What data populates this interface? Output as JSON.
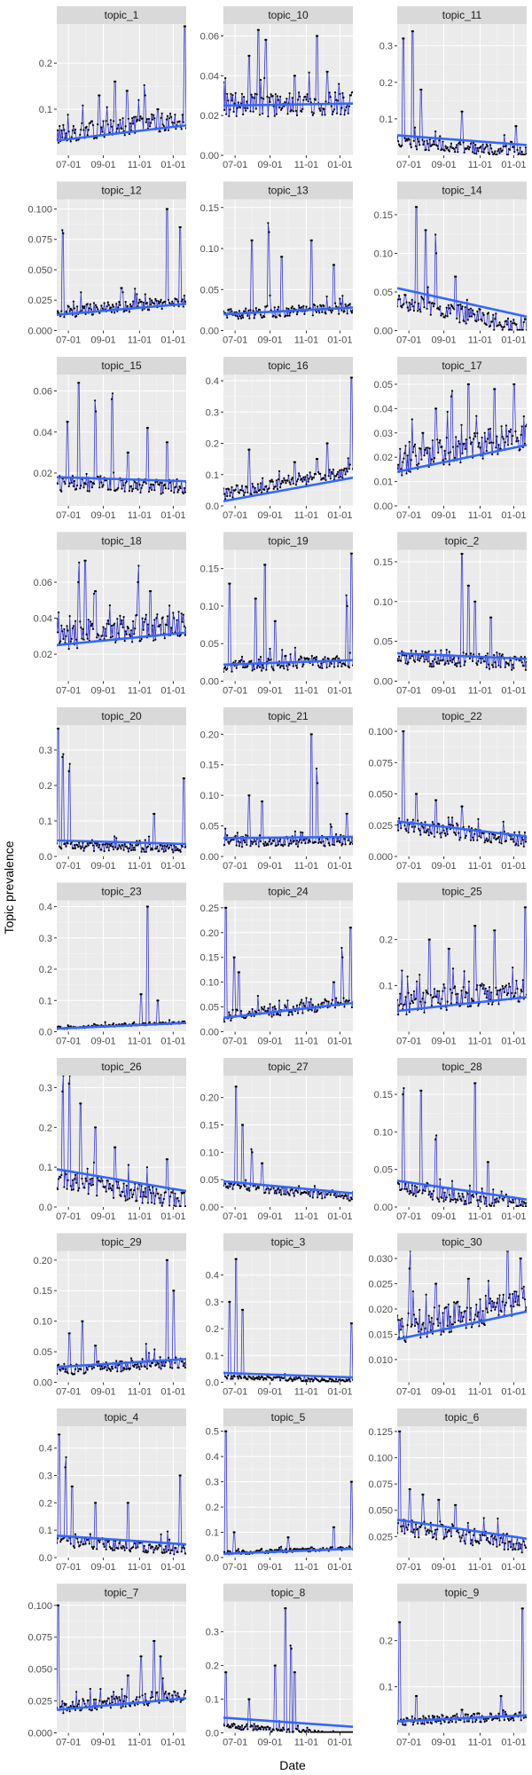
{
  "figure": {
    "xlabel": "Date",
    "ylabel": "Topic prevalence",
    "x_tick_labels": [
      "07-01",
      "09-01",
      "11-01",
      "01-01"
    ],
    "colors": {
      "panel_bg": "#ebebeb",
      "grid": "#ffffff",
      "strip_bg": "#d9d9d9",
      "line": "#3333cc",
      "point": "#000000",
      "trend": "#3366ff"
    }
  },
  "chart_data": [
    {
      "title": "topic_1",
      "type": "line",
      "y_ticks": [
        "0.1",
        "0.2"
      ],
      "ylim": [
        0,
        0.285
      ],
      "trend": [
        0.032,
        0.065
      ],
      "base": 0.045,
      "noise": 0.02,
      "spikes": [
        [
          0.33,
          0.13
        ],
        [
          0.45,
          0.16
        ],
        [
          0.54,
          0.14
        ],
        [
          0.68,
          0.13
        ],
        [
          0.78,
          0.1
        ],
        [
          0.99,
          0.28
        ]
      ]
    },
    {
      "title": "topic_10",
      "type": "line",
      "y_ticks": [
        "0.00",
        "0.02",
        "0.04",
        "0.06"
      ],
      "ylim": [
        0,
        0.066
      ],
      "trend": [
        0.025,
        0.026
      ],
      "base": 0.025,
      "noise": 0.006,
      "spikes": [
        [
          0.2,
          0.05
        ],
        [
          0.27,
          0.063
        ],
        [
          0.33,
          0.058
        ],
        [
          0.55,
          0.04
        ],
        [
          0.72,
          0.06
        ],
        [
          0.8,
          0.042
        ]
      ]
    },
    {
      "title": "topic_11",
      "type": "line",
      "y_ticks": [
        "0.1",
        "0.2",
        "0.3"
      ],
      "ylim": [
        0,
        0.36
      ],
      "trend": [
        0.055,
        0.028
      ],
      "base": 0.035,
      "noise": 0.015,
      "spikes": [
        [
          0.05,
          0.32
        ],
        [
          0.12,
          0.34
        ],
        [
          0.18,
          0.18
        ],
        [
          0.5,
          0.12
        ],
        [
          0.92,
          0.08
        ]
      ]
    },
    {
      "title": "topic_12",
      "type": "line",
      "y_ticks": [
        "0.000",
        "0.025",
        "0.050",
        "0.075",
        "0.100"
      ],
      "ylim": [
        0,
        0.108
      ],
      "trend": [
        0.013,
        0.022
      ],
      "base": 0.015,
      "noise": 0.005,
      "spikes": [
        [
          0.05,
          0.08
        ],
        [
          0.5,
          0.035
        ],
        [
          0.85,
          0.1
        ],
        [
          0.95,
          0.085
        ]
      ]
    },
    {
      "title": "topic_13",
      "type": "line",
      "y_ticks": [
        "0.00",
        "0.05",
        "0.10",
        "0.15"
      ],
      "ylim": [
        0,
        0.16
      ],
      "trend": [
        0.02,
        0.028
      ],
      "base": 0.02,
      "noise": 0.007,
      "spikes": [
        [
          0.22,
          0.11
        ],
        [
          0.35,
          0.12
        ],
        [
          0.45,
          0.09
        ],
        [
          0.68,
          0.11
        ],
        [
          0.85,
          0.08
        ]
      ]
    },
    {
      "title": "topic_14",
      "type": "line",
      "y_ticks": [
        "0.00",
        "0.05",
        "0.10",
        "0.15"
      ],
      "ylim": [
        0,
        0.17
      ],
      "trend": [
        0.055,
        0.018
      ],
      "base": 0.04,
      "noise": 0.012,
      "spikes": [
        [
          0.15,
          0.16
        ],
        [
          0.22,
          0.13
        ],
        [
          0.3,
          0.1
        ],
        [
          0.45,
          0.07
        ]
      ]
    },
    {
      "title": "topic_15",
      "type": "line",
      "y_ticks": [
        "0.02",
        "0.04",
        "0.06"
      ],
      "ylim": [
        0.004,
        0.068
      ],
      "trend": [
        0.018,
        0.016
      ],
      "base": 0.015,
      "noise": 0.004,
      "spikes": [
        [
          0.08,
          0.045
        ],
        [
          0.17,
          0.064
        ],
        [
          0.3,
          0.05
        ],
        [
          0.43,
          0.056
        ],
        [
          0.55,
          0.03
        ],
        [
          0.7,
          0.042
        ],
        [
          0.85,
          0.035
        ]
      ]
    },
    {
      "title": "topic_16",
      "type": "line",
      "y_ticks": [
        "0.0",
        "0.1",
        "0.2",
        "0.3",
        "0.4"
      ],
      "ylim": [
        0,
        0.42
      ],
      "trend": [
        0.015,
        0.09
      ],
      "base": 0.04,
      "noise": 0.02,
      "spikes": [
        [
          0.2,
          0.18
        ],
        [
          0.55,
          0.14
        ],
        [
          0.72,
          0.15
        ],
        [
          0.8,
          0.2
        ],
        [
          0.99,
          0.41
        ]
      ]
    },
    {
      "title": "topic_17",
      "type": "line",
      "y_ticks": [
        "0.00",
        "0.01",
        "0.02",
        "0.03",
        "0.04",
        "0.05"
      ],
      "ylim": [
        0,
        0.054
      ],
      "trend": [
        0.014,
        0.025
      ],
      "base": 0.018,
      "noise": 0.006,
      "spikes": [
        [
          0.2,
          0.03
        ],
        [
          0.3,
          0.04
        ],
        [
          0.42,
          0.045
        ],
        [
          0.55,
          0.05
        ],
        [
          0.75,
          0.048
        ],
        [
          0.9,
          0.05
        ]
      ]
    },
    {
      "title": "topic_18",
      "type": "line",
      "y_ticks": [
        "0.02",
        "0.04",
        "0.06"
      ],
      "ylim": [
        0.005,
        0.078
      ],
      "trend": [
        0.025,
        0.032
      ],
      "base": 0.03,
      "noise": 0.008,
      "spikes": [
        [
          0.17,
          0.06
        ],
        [
          0.22,
          0.072
        ],
        [
          0.3,
          0.055
        ],
        [
          0.63,
          0.06
        ],
        [
          0.72,
          0.055
        ]
      ]
    },
    {
      "title": "topic_19",
      "type": "line",
      "y_ticks": [
        "0.00",
        "0.05",
        "0.10",
        "0.15"
      ],
      "ylim": [
        0,
        0.175
      ],
      "trend": [
        0.022,
        0.028
      ],
      "base": 0.02,
      "noise": 0.008,
      "spikes": [
        [
          0.05,
          0.13
        ],
        [
          0.25,
          0.11
        ],
        [
          0.32,
          0.155
        ],
        [
          0.4,
          0.08
        ],
        [
          0.95,
          0.1
        ],
        [
          0.99,
          0.17
        ]
      ]
    },
    {
      "title": "topic_2",
      "type": "line",
      "y_ticks": [
        "0.00",
        "0.05",
        "0.10",
        "0.15"
      ],
      "ylim": [
        0,
        0.165
      ],
      "trend": [
        0.035,
        0.028
      ],
      "base": 0.03,
      "noise": 0.01,
      "spikes": [
        [
          0.5,
          0.16
        ],
        [
          0.55,
          0.12
        ],
        [
          0.6,
          0.1
        ],
        [
          0.72,
          0.08
        ]
      ]
    },
    {
      "title": "topic_20",
      "type": "line",
      "y_ticks": [
        "0.0",
        "0.1",
        "0.2",
        "0.3"
      ],
      "ylim": [
        0,
        0.37
      ],
      "trend": [
        0.045,
        0.035
      ],
      "base": 0.03,
      "noise": 0.012,
      "spikes": [
        [
          0.01,
          0.36
        ],
        [
          0.05,
          0.28
        ],
        [
          0.1,
          0.24
        ],
        [
          0.75,
          0.12
        ],
        [
          0.98,
          0.22
        ]
      ]
    },
    {
      "title": "topic_21",
      "type": "line",
      "y_ticks": [
        "0.00",
        "0.05",
        "0.10",
        "0.15",
        "0.20"
      ],
      "ylim": [
        0,
        0.215
      ],
      "trend": [
        0.03,
        0.032
      ],
      "base": 0.025,
      "noise": 0.01,
      "spikes": [
        [
          0.2,
          0.1
        ],
        [
          0.3,
          0.09
        ],
        [
          0.68,
          0.2
        ],
        [
          0.72,
          0.12
        ],
        [
          0.95,
          0.07
        ]
      ]
    },
    {
      "title": "topic_22",
      "type": "line",
      "y_ticks": [
        "0.000",
        "0.025",
        "0.050",
        "0.075",
        "0.100"
      ],
      "ylim": [
        0,
        0.105
      ],
      "trend": [
        0.028,
        0.016
      ],
      "base": 0.025,
      "noise": 0.006,
      "spikes": [
        [
          0.05,
          0.1
        ],
        [
          0.15,
          0.05
        ],
        [
          0.3,
          0.045
        ],
        [
          0.5,
          0.04
        ]
      ]
    },
    {
      "title": "topic_23",
      "type": "line",
      "y_ticks": [
        "0.0",
        "0.1",
        "0.2",
        "0.3",
        "0.4"
      ],
      "ylim": [
        0,
        0.42
      ],
      "trend": [
        0.01,
        0.028
      ],
      "base": 0.012,
      "noise": 0.004,
      "spikes": [
        [
          0.65,
          0.12
        ],
        [
          0.7,
          0.4
        ],
        [
          0.78,
          0.1
        ]
      ]
    },
    {
      "title": "topic_24",
      "type": "line",
      "y_ticks": [
        "0.00",
        "0.05",
        "0.10",
        "0.15",
        "0.20",
        "0.25"
      ],
      "ylim": [
        0,
        0.265
      ],
      "trend": [
        0.028,
        0.058
      ],
      "base": 0.03,
      "noise": 0.012,
      "spikes": [
        [
          0.02,
          0.25
        ],
        [
          0.08,
          0.15
        ],
        [
          0.12,
          0.12
        ],
        [
          0.85,
          0.1
        ],
        [
          0.92,
          0.15
        ],
        [
          0.98,
          0.21
        ]
      ]
    },
    {
      "title": "topic_25",
      "type": "line",
      "y_ticks": [
        "0.1",
        "0.2"
      ],
      "ylim": [
        0,
        0.285
      ],
      "trend": [
        0.045,
        0.075
      ],
      "base": 0.06,
      "noise": 0.025,
      "spikes": [
        [
          0.25,
          0.2
        ],
        [
          0.4,
          0.18
        ],
        [
          0.6,
          0.23
        ],
        [
          0.75,
          0.22
        ],
        [
          0.99,
          0.27
        ]
      ]
    },
    {
      "title": "topic_26",
      "type": "line",
      "y_ticks": [
        "0.0",
        "0.1",
        "0.2",
        "0.3"
      ],
      "ylim": [
        0,
        0.33
      ],
      "trend": [
        0.095,
        0.04
      ],
      "base": 0.07,
      "noise": 0.025,
      "spikes": [
        [
          0.05,
          0.29
        ],
        [
          0.1,
          0.31
        ],
        [
          0.18,
          0.26
        ],
        [
          0.3,
          0.2
        ],
        [
          0.45,
          0.15
        ],
        [
          0.85,
          0.12
        ]
      ]
    },
    {
      "title": "topic_27",
      "type": "line",
      "y_ticks": [
        "0.00",
        "0.05",
        "0.10",
        "0.15",
        "0.20"
      ],
      "ylim": [
        0,
        0.24
      ],
      "trend": [
        0.047,
        0.025
      ],
      "base": 0.04,
      "noise": 0.008,
      "spikes": [
        [
          0.1,
          0.22
        ],
        [
          0.15,
          0.15
        ],
        [
          0.22,
          0.1
        ],
        [
          0.3,
          0.08
        ]
      ]
    },
    {
      "title": "topic_28",
      "type": "line",
      "y_ticks": [
        "0.00",
        "0.05",
        "0.10",
        "0.15"
      ],
      "ylim": [
        0,
        0.175
      ],
      "trend": [
        0.035,
        0.01
      ],
      "base": 0.025,
      "noise": 0.01,
      "spikes": [
        [
          0.05,
          0.15
        ],
        [
          0.18,
          0.155
        ],
        [
          0.3,
          0.09
        ],
        [
          0.6,
          0.165
        ],
        [
          0.7,
          0.06
        ]
      ]
    },
    {
      "title": "topic_29",
      "type": "line",
      "y_ticks": [
        "0.00",
        "0.05",
        "0.10",
        "0.15",
        "0.20"
      ],
      "ylim": [
        0,
        0.215
      ],
      "trend": [
        0.025,
        0.038
      ],
      "base": 0.02,
      "noise": 0.01,
      "spikes": [
        [
          0.1,
          0.08
        ],
        [
          0.2,
          0.1
        ],
        [
          0.3,
          0.06
        ],
        [
          0.85,
          0.2
        ],
        [
          0.9,
          0.15
        ]
      ]
    },
    {
      "title": "topic_3",
      "type": "line",
      "y_ticks": [
        "0.0",
        "0.1",
        "0.2",
        "0.3",
        "0.4"
      ],
      "ylim": [
        0,
        0.49
      ],
      "trend": [
        0.035,
        0.018
      ],
      "base": 0.02,
      "noise": 0.007,
      "spikes": [
        [
          0.05,
          0.3
        ],
        [
          0.1,
          0.46
        ],
        [
          0.15,
          0.27
        ],
        [
          0.99,
          0.22
        ]
      ]
    },
    {
      "title": "topic_30",
      "type": "line",
      "y_ticks": [
        "0.010",
        "0.015",
        "0.020",
        "0.025",
        "0.030"
      ],
      "ylim": [
        0.0055,
        0.0315
      ],
      "trend": [
        0.014,
        0.0195
      ],
      "base": 0.016,
      "noise": 0.003,
      "spikes": [
        [
          0.1,
          0.028
        ],
        [
          0.3,
          0.025
        ],
        [
          0.55,
          0.026
        ],
        [
          0.85,
          0.029
        ],
        [
          0.95,
          0.03
        ]
      ]
    },
    {
      "title": "topic_4",
      "type": "line",
      "y_ticks": [
        "0.0",
        "0.1",
        "0.2",
        "0.3",
        "0.4"
      ],
      "ylim": [
        0,
        0.48
      ],
      "trend": [
        0.08,
        0.048
      ],
      "base": 0.06,
      "noise": 0.02,
      "spikes": [
        [
          0.02,
          0.45
        ],
        [
          0.07,
          0.33
        ],
        [
          0.12,
          0.26
        ],
        [
          0.3,
          0.2
        ],
        [
          0.55,
          0.2
        ],
        [
          0.95,
          0.3
        ]
      ]
    },
    {
      "title": "topic_5",
      "type": "line",
      "y_ticks": [
        "0.0",
        "0.1",
        "0.2",
        "0.3",
        "0.4",
        "0.5"
      ],
      "ylim": [
        0,
        0.52
      ],
      "trend": [
        0.015,
        0.035
      ],
      "base": 0.018,
      "noise": 0.008,
      "spikes": [
        [
          0.02,
          0.5
        ],
        [
          0.08,
          0.1
        ],
        [
          0.5,
          0.08
        ],
        [
          0.85,
          0.12
        ],
        [
          0.99,
          0.3
        ]
      ]
    },
    {
      "title": "topic_6",
      "type": "line",
      "y_ticks": [
        "0.025",
        "0.050",
        "0.075",
        "0.100",
        "0.125"
      ],
      "ylim": [
        0.005,
        0.13
      ],
      "trend": [
        0.041,
        0.023
      ],
      "base": 0.035,
      "noise": 0.008,
      "spikes": [
        [
          0.02,
          0.125
        ],
        [
          0.1,
          0.07
        ],
        [
          0.2,
          0.065
        ],
        [
          0.32,
          0.06
        ],
        [
          0.45,
          0.055
        ]
      ]
    },
    {
      "title": "topic_7",
      "type": "line",
      "y_ticks": [
        "0.000",
        "0.025",
        "0.050",
        "0.075",
        "0.100"
      ],
      "ylim": [
        0,
        0.103
      ],
      "trend": [
        0.018,
        0.027
      ],
      "base": 0.02,
      "noise": 0.005,
      "spikes": [
        [
          0.01,
          0.1
        ],
        [
          0.55,
          0.045
        ],
        [
          0.65,
          0.06
        ],
        [
          0.75,
          0.072
        ],
        [
          0.8,
          0.06
        ]
      ]
    },
    {
      "title": "topic_8",
      "type": "line",
      "y_ticks": [
        "0.0",
        "0.1",
        "0.2",
        "0.3"
      ],
      "ylim": [
        0,
        0.39
      ],
      "trend": [
        0.045,
        0.018
      ],
      "base": 0.02,
      "noise": 0.008,
      "spikes": [
        [
          0.02,
          0.18
        ],
        [
          0.2,
          0.1
        ],
        [
          0.4,
          0.2
        ],
        [
          0.48,
          0.37
        ],
        [
          0.52,
          0.25
        ],
        [
          0.55,
          0.18
        ]
      ]
    },
    {
      "title": "topic_9",
      "type": "line",
      "y_ticks": [
        "0.1",
        "0.2"
      ],
      "ylim": [
        0,
        0.285
      ],
      "trend": [
        0.025,
        0.038
      ],
      "base": 0.025,
      "noise": 0.01,
      "spikes": [
        [
          0.02,
          0.24
        ],
        [
          0.15,
          0.08
        ],
        [
          0.5,
          0.05
        ],
        [
          0.8,
          0.08
        ],
        [
          0.97,
          0.27
        ]
      ]
    }
  ]
}
